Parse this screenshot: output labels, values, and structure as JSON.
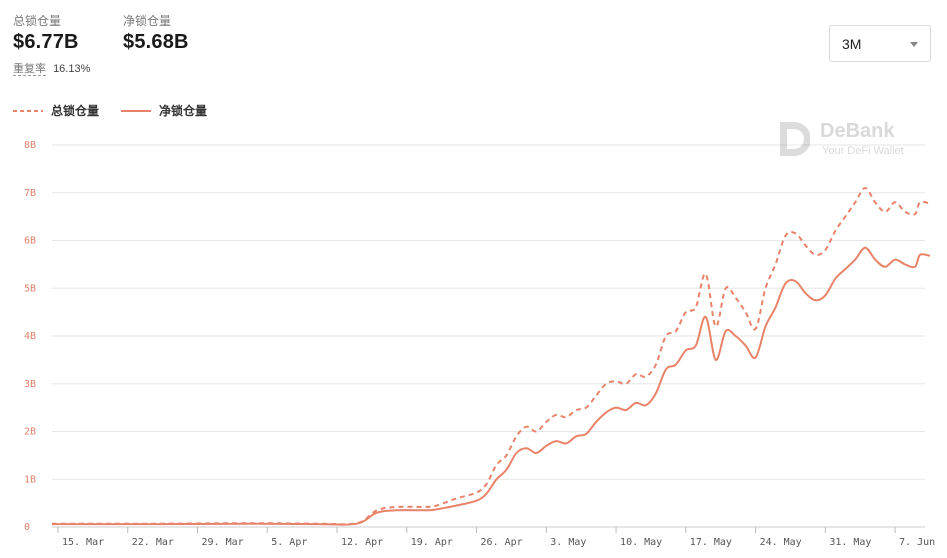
{
  "summary": {
    "total_label": "总锁仓量",
    "total_value": "$6.77B",
    "net_label": "净锁仓量",
    "net_value": "$5.68B",
    "repeat_label": "重复率",
    "repeat_value": "16.13%"
  },
  "range_select": {
    "value": "3M"
  },
  "watermark": {
    "name": "DeBank",
    "tagline": "Your DeFi Wallet"
  },
  "colors": {
    "series": "#e8836a",
    "grid": "#e6e6e6"
  },
  "chart_data": {
    "type": "line",
    "x_unit": "day index from 15. Mar",
    "y_unit": "B",
    "yticks": [
      {
        "v": 0,
        "label": "0"
      },
      {
        "v": 1,
        "label": "1B"
      },
      {
        "v": 2,
        "label": "2B"
      },
      {
        "v": 3,
        "label": "3B"
      },
      {
        "v": 4,
        "label": "4B"
      },
      {
        "v": 5,
        "label": "5B"
      },
      {
        "v": 6,
        "label": "6B"
      },
      {
        "v": 7,
        "label": "7B"
      },
      {
        "v": 8,
        "label": "8B"
      }
    ],
    "xticks": [
      {
        "d": 0,
        "label": "15. Mar"
      },
      {
        "d": 7,
        "label": "22. Mar"
      },
      {
        "d": 14,
        "label": "29. Mar"
      },
      {
        "d": 21,
        "label": "5. Apr"
      },
      {
        "d": 28,
        "label": "12. Apr"
      },
      {
        "d": 35,
        "label": "19. Apr"
      },
      {
        "d": 42,
        "label": "26. Apr"
      },
      {
        "d": 49,
        "label": "3. May"
      },
      {
        "d": 56,
        "label": "10. May"
      },
      {
        "d": 63,
        "label": "17. May"
      },
      {
        "d": 70,
        "label": "24. May"
      },
      {
        "d": 77,
        "label": "31. May"
      },
      {
        "d": 84,
        "label": "7. Jun"
      }
    ],
    "ylim": [
      0,
      8
    ],
    "xlim": [
      -0.6,
      86.5
    ],
    "grid": true,
    "legend_position": "top-left",
    "series": [
      {
        "name": "总锁仓量",
        "style": "dashed",
        "points": [
          [
            -0.6,
            0.07
          ],
          [
            10,
            0.07
          ],
          [
            20,
            0.08
          ],
          [
            26,
            0.07
          ],
          [
            30,
            0.08
          ],
          [
            32,
            0.35
          ],
          [
            34,
            0.42
          ],
          [
            37,
            0.42
          ],
          [
            38,
            0.45
          ],
          [
            40,
            0.6
          ],
          [
            42,
            0.72
          ],
          [
            43,
            0.9
          ],
          [
            44,
            1.3
          ],
          [
            45,
            1.5
          ],
          [
            46,
            1.9
          ],
          [
            47,
            2.1
          ],
          [
            48,
            2.0
          ],
          [
            49,
            2.2
          ],
          [
            50,
            2.35
          ],
          [
            51,
            2.3
          ],
          [
            52,
            2.45
          ],
          [
            53,
            2.5
          ],
          [
            54,
            2.75
          ],
          [
            55,
            3.0
          ],
          [
            56,
            3.05
          ],
          [
            57,
            3.0
          ],
          [
            58,
            3.2
          ],
          [
            59,
            3.15
          ],
          [
            60,
            3.4
          ],
          [
            61,
            4.0
          ],
          [
            62,
            4.1
          ],
          [
            63,
            4.5
          ],
          [
            64,
            4.6
          ],
          [
            65,
            5.3
          ],
          [
            66,
            4.2
          ],
          [
            67,
            5.0
          ],
          [
            68,
            4.8
          ],
          [
            69,
            4.5
          ],
          [
            70,
            4.15
          ],
          [
            71,
            5.0
          ],
          [
            72,
            5.5
          ],
          [
            73,
            6.1
          ],
          [
            74,
            6.15
          ],
          [
            75,
            5.9
          ],
          [
            76,
            5.7
          ],
          [
            77,
            5.8
          ],
          [
            78,
            6.2
          ],
          [
            79,
            6.5
          ],
          [
            80,
            6.8
          ],
          [
            81,
            7.1
          ],
          [
            82,
            6.8
          ],
          [
            83,
            6.6
          ],
          [
            84,
            6.8
          ],
          [
            85,
            6.6
          ],
          [
            86,
            6.55
          ],
          [
            86.5,
            6.8
          ],
          [
            87.5,
            6.77
          ]
        ]
      },
      {
        "name": "净锁仓量",
        "style": "solid",
        "points": [
          [
            -0.6,
            0.06
          ],
          [
            10,
            0.06
          ],
          [
            20,
            0.07
          ],
          [
            26,
            0.06
          ],
          [
            30,
            0.07
          ],
          [
            32,
            0.3
          ],
          [
            34,
            0.35
          ],
          [
            37,
            0.35
          ],
          [
            38,
            0.37
          ],
          [
            40,
            0.45
          ],
          [
            42,
            0.55
          ],
          [
            43,
            0.7
          ],
          [
            44,
            1.0
          ],
          [
            45,
            1.2
          ],
          [
            46,
            1.55
          ],
          [
            47,
            1.65
          ],
          [
            48,
            1.55
          ],
          [
            49,
            1.7
          ],
          [
            50,
            1.8
          ],
          [
            51,
            1.75
          ],
          [
            52,
            1.9
          ],
          [
            53,
            1.95
          ],
          [
            54,
            2.2
          ],
          [
            55,
            2.4
          ],
          [
            56,
            2.5
          ],
          [
            57,
            2.45
          ],
          [
            58,
            2.6
          ],
          [
            59,
            2.55
          ],
          [
            60,
            2.8
          ],
          [
            61,
            3.3
          ],
          [
            62,
            3.4
          ],
          [
            63,
            3.7
          ],
          [
            64,
            3.8
          ],
          [
            65,
            4.4
          ],
          [
            66,
            3.5
          ],
          [
            67,
            4.1
          ],
          [
            68,
            4.0
          ],
          [
            69,
            3.8
          ],
          [
            70,
            3.55
          ],
          [
            71,
            4.2
          ],
          [
            72,
            4.6
          ],
          [
            73,
            5.1
          ],
          [
            74,
            5.15
          ],
          [
            75,
            4.9
          ],
          [
            76,
            4.75
          ],
          [
            77,
            4.85
          ],
          [
            78,
            5.2
          ],
          [
            79,
            5.4
          ],
          [
            80,
            5.6
          ],
          [
            81,
            5.85
          ],
          [
            82,
            5.6
          ],
          [
            83,
            5.45
          ],
          [
            84,
            5.6
          ],
          [
            85,
            5.5
          ],
          [
            86,
            5.45
          ],
          [
            86.5,
            5.7
          ],
          [
            87.5,
            5.68
          ]
        ]
      }
    ]
  }
}
